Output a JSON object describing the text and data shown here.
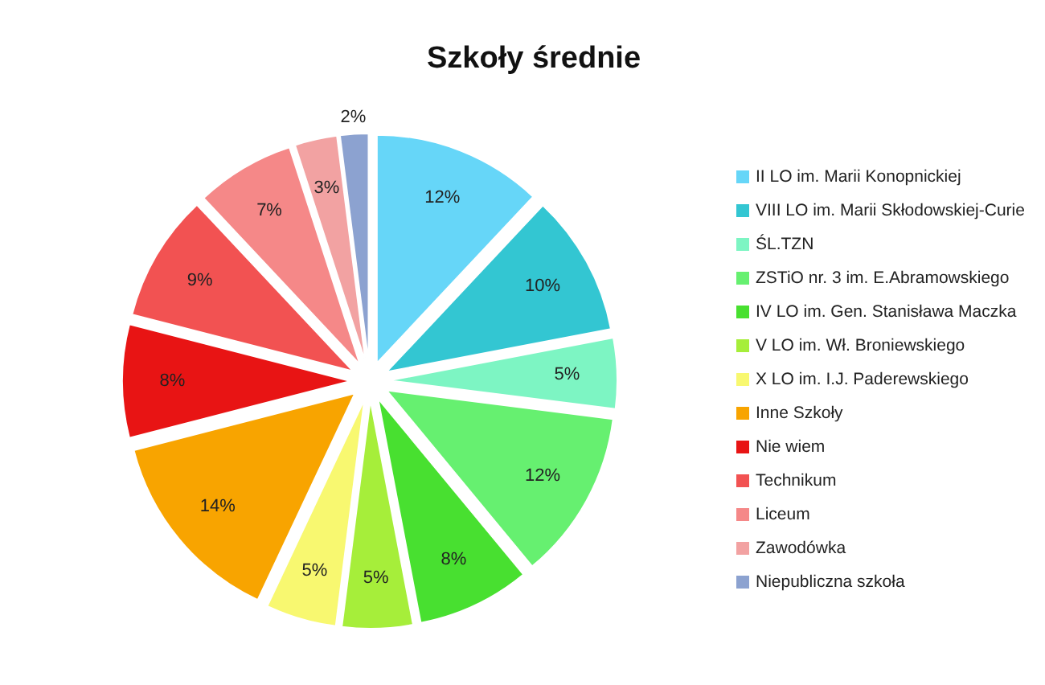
{
  "chart_data": {
    "type": "pie",
    "title": "Szkoły średnie",
    "categories": [
      "II LO im. Marii Konopnickiej",
      "VIII LO im. Marii Skłodowskiej-Curie",
      "ŚL.TZN",
      "ZSTiO nr. 3 im. E.Abramowskiego",
      "IV LO im. Gen. Stanisława Maczka",
      "V LO im. Wł. Broniewskiego",
      "X LO im. I.J. Paderewskiego",
      "Inne Szkoły",
      "Nie wiem",
      "Technikum",
      "Liceum",
      "Zawodówka",
      "Niepubliczna szkoła"
    ],
    "values": [
      12,
      10,
      5,
      12,
      8,
      5,
      5,
      14,
      8,
      9,
      7,
      3,
      2
    ],
    "colors": [
      "#66d6f8",
      "#33c6d2",
      "#7df5c3",
      "#66f070",
      "#48e030",
      "#a6ee3a",
      "#f8f870",
      "#f8a400",
      "#e81414",
      "#f25252",
      "#f58888",
      "#f2a2a2",
      "#8ca2d0"
    ],
    "value_labels": [
      "12%",
      "10%",
      "5%",
      "12%",
      "8%",
      "5%",
      "5%",
      "14%",
      "8%",
      "9%",
      "7%",
      "3%",
      "2%"
    ],
    "legend": "right"
  }
}
